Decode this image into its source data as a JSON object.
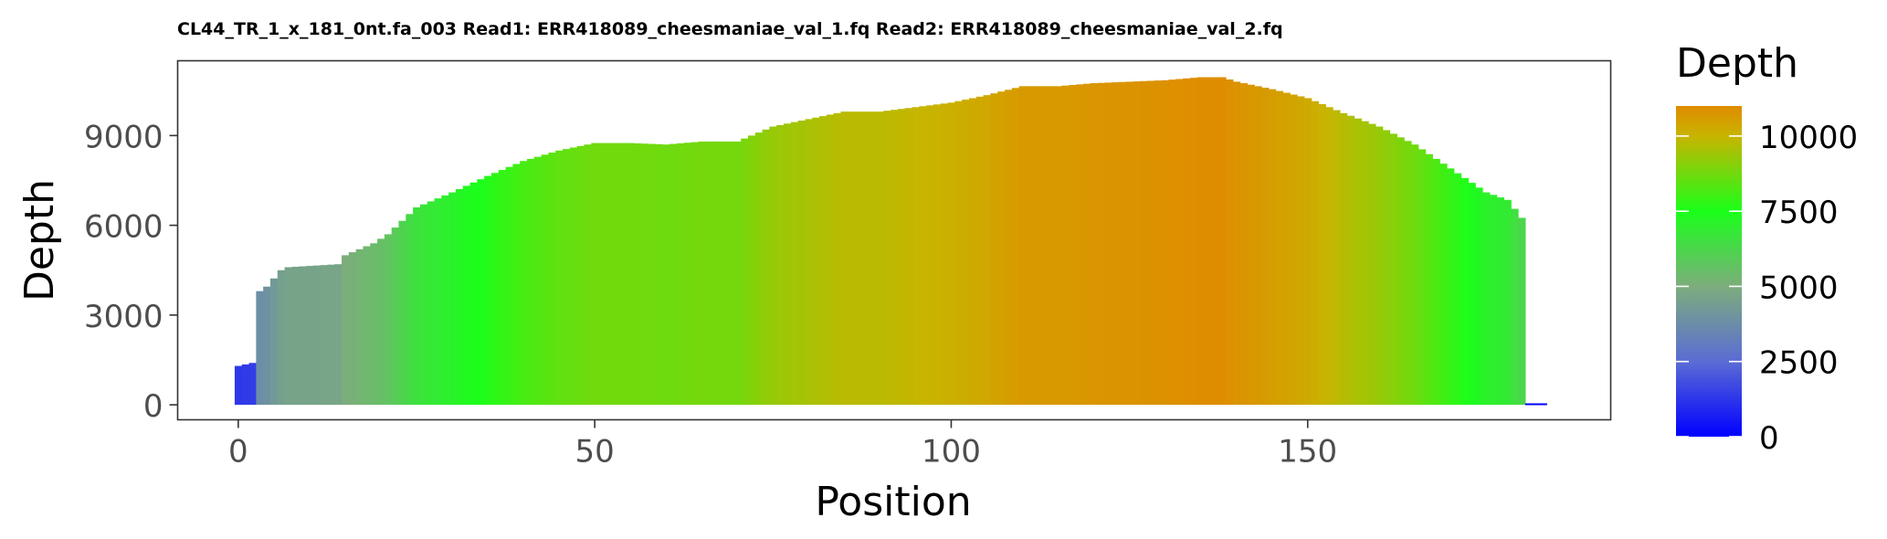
{
  "chart_data": {
    "type": "bar",
    "title": "CL44_TR_1_x_181_0nt.fa_003 Read1: ERR418089_cheesmaniae_val_1.fq Read2: ERR418089_cheesmaniae_val_2.fq",
    "xlabel": "Position",
    "ylabel": "Depth",
    "xlim": [
      -8.5,
      192.5
    ],
    "ylim": [
      -500,
      11500
    ],
    "xticks": [
      0,
      50,
      100,
      150
    ],
    "xtick_labels": [
      "0",
      "50",
      "100",
      "150"
    ],
    "yticks": [
      0,
      3000,
      6000,
      9000
    ],
    "ytick_labels": [
      "0",
      "3000",
      "6000",
      "9000"
    ],
    "grid": false,
    "legend": {
      "title": "Depth",
      "placement": "right",
      "type": "colorbar",
      "breaks": [
        0,
        2500,
        5000,
        7500,
        10000
      ],
      "break_labels": [
        "0",
        "2500",
        "5000",
        "7500",
        "10000"
      ],
      "range": [
        0,
        11000
      ]
    },
    "colors": {
      "low": "#0000ff",
      "mid_low": "#7cad7c",
      "mid": "#1aff1a",
      "mid_high": "#c8b400",
      "high": "#e08b00"
    },
    "key_points": {
      "positions": [
        0,
        2,
        3,
        4,
        6,
        7,
        14,
        15,
        19,
        21,
        23,
        25,
        30,
        35,
        40,
        45,
        50,
        55,
        60,
        65,
        70,
        75,
        80,
        85,
        90,
        95,
        100,
        105,
        110,
        115,
        120,
        125,
        130,
        135,
        138,
        140,
        145,
        150,
        155,
        160,
        165,
        170,
        175,
        178,
        180,
        181,
        182,
        183
      ],
      "depths": [
        1300,
        1400,
        3800,
        3950,
        4500,
        4600,
        4700,
        5000,
        5400,
        5700,
        6150,
        6600,
        7100,
        7650,
        8150,
        8500,
        8750,
        8750,
        8700,
        8800,
        8800,
        9300,
        9550,
        9800,
        9800,
        9950,
        10100,
        10350,
        10650,
        10650,
        10750,
        10800,
        10850,
        10950,
        10950,
        10800,
        10550,
        10250,
        9750,
        9300,
        8700,
        7900,
        7100,
        6850,
        6250,
        50,
        50,
        50
      ]
    }
  }
}
